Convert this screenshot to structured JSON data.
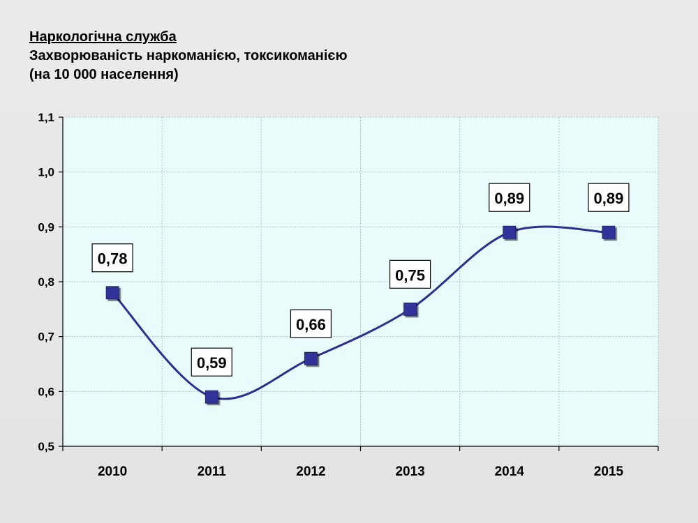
{
  "heading": {
    "line1": "Наркологічна служба",
    "line2": "Захворюваність  наркоманією, токсикоманією",
    "line3": "(на 10 000 населення)"
  },
  "chart_data": {
    "type": "line",
    "categories": [
      "2010",
      "2011",
      "2012",
      "2013",
      "2014",
      "2015"
    ],
    "series": [
      {
        "values": [
          0.78,
          0.59,
          0.66,
          0.75,
          0.89,
          0.89
        ]
      }
    ],
    "data_labels": [
      "0,78",
      "0,59",
      "0,66",
      "0,75",
      "0,89",
      "0,89"
    ],
    "ylim": [
      0.5,
      1.1
    ],
    "yticks": [
      0.5,
      0.6,
      0.7,
      0.8,
      0.9,
      1.0,
      1.1
    ],
    "ytick_labels": [
      "0,5",
      "0,6",
      "0,7",
      "0,8",
      "0,9",
      "1,0",
      "1,1"
    ],
    "grid": true,
    "smooth": true,
    "colors": {
      "line": "#2e2e8f",
      "marker": "#33339b",
      "plot_bg": "#e9fbfb",
      "grid": "#a6c6c6"
    }
  }
}
